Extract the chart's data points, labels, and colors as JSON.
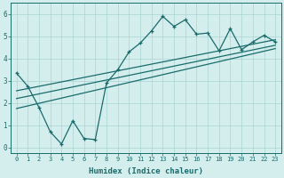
{
  "xlabel": "Humidex (Indice chaleur)",
  "bg_color": "#d4eeee",
  "line_color": "#1a6b6b",
  "grid_color": "#aad4d4",
  "data_x": [
    0,
    1,
    2,
    3,
    4,
    5,
    6,
    7,
    8,
    9,
    10,
    11,
    12,
    13,
    14,
    15,
    16,
    17,
    18,
    19,
    20,
    21,
    22,
    23
  ],
  "data_y": [
    3.35,
    2.75,
    1.8,
    0.7,
    0.15,
    1.2,
    0.4,
    0.35,
    2.9,
    3.5,
    4.3,
    4.7,
    5.25,
    5.9,
    5.45,
    5.75,
    5.1,
    5.15,
    4.35,
    5.35,
    4.4,
    4.75,
    5.05,
    4.75
  ],
  "reg_lines": [
    {
      "x": [
        0,
        23
      ],
      "y": [
        2.55,
        4.85
      ]
    },
    {
      "x": [
        0,
        23
      ],
      "y": [
        2.2,
        4.6
      ]
    },
    {
      "x": [
        0,
        23
      ],
      "y": [
        1.75,
        4.45
      ]
    }
  ],
  "xlim": [
    -0.5,
    23.5
  ],
  "ylim": [
    -0.25,
    6.5
  ],
  "xticks": [
    0,
    1,
    2,
    3,
    4,
    5,
    6,
    7,
    8,
    9,
    10,
    11,
    12,
    13,
    14,
    15,
    16,
    17,
    18,
    19,
    20,
    21,
    22,
    23
  ],
  "yticks": [
    0,
    1,
    2,
    3,
    4,
    5,
    6
  ],
  "tick_fontsize": 5.0,
  "xlabel_fontsize": 6.5
}
